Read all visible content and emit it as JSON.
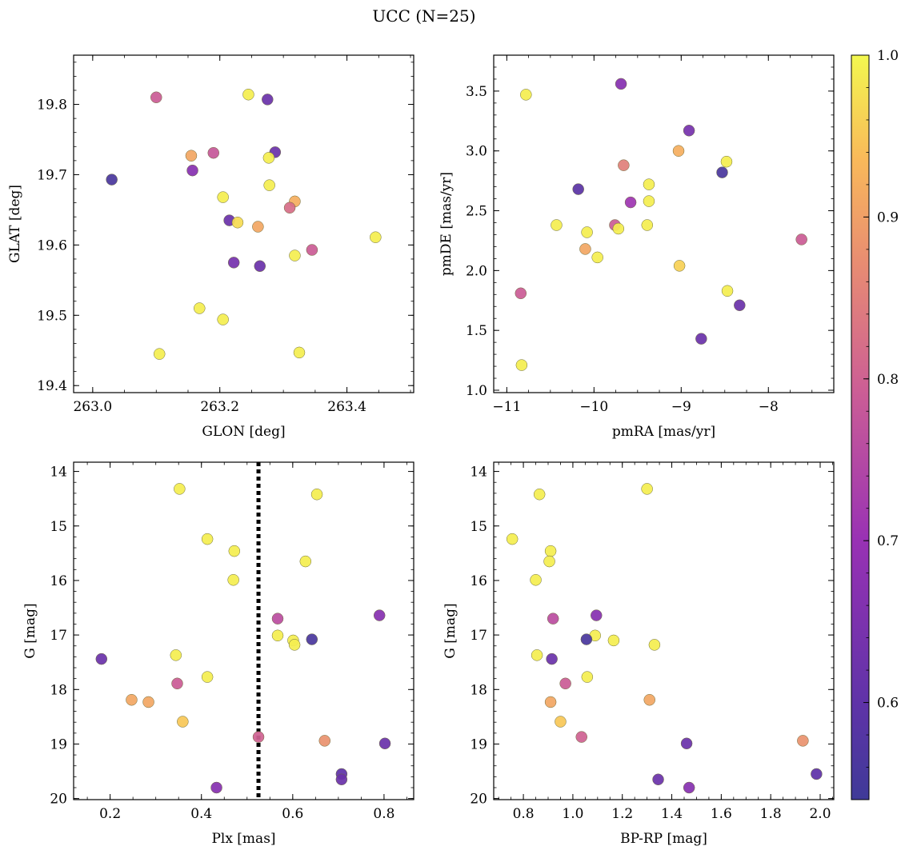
{
  "figure": {
    "title": "UCC (N=25)"
  },
  "colorbar": {
    "colormap": "plasma",
    "vmin": 0.54,
    "vmax": 1.0,
    "ticks": [
      0.6,
      0.7,
      0.8,
      0.9,
      1.0
    ],
    "tick_labels": [
      "0.6",
      "0.7",
      "0.8",
      "0.9",
      "1.0"
    ]
  },
  "chart_data": [
    {
      "type": "scatter",
      "title": "",
      "xlabel": "GLON [deg]",
      "ylabel": "GLAT [deg]",
      "xlim": [
        262.97,
        263.505
      ],
      "ylim": [
        19.39,
        19.87
      ],
      "xticks": [
        263.0,
        263.2,
        263.4
      ],
      "xtick_labels": [
        "263.0",
        "263.2",
        "263.4"
      ],
      "yticks": [
        19.4,
        19.5,
        19.6,
        19.7,
        19.8
      ],
      "ytick_labels": [
        "19.4",
        "19.5",
        "19.6",
        "19.7",
        "19.8"
      ],
      "points": [
        {
          "x": 263.1,
          "y": 19.81,
          "c": 0.79
        },
        {
          "x": 263.245,
          "y": 19.814,
          "c": 0.99
        },
        {
          "x": 263.275,
          "y": 19.807,
          "c": 0.62
        },
        {
          "x": 263.03,
          "y": 19.693,
          "c": 0.56
        },
        {
          "x": 263.155,
          "y": 19.727,
          "c": 0.91
        },
        {
          "x": 263.19,
          "y": 19.731,
          "c": 0.78
        },
        {
          "x": 263.157,
          "y": 19.706,
          "c": 0.67
        },
        {
          "x": 263.287,
          "y": 19.732,
          "c": 0.62
        },
        {
          "x": 263.277,
          "y": 19.724,
          "c": 0.99
        },
        {
          "x": 263.278,
          "y": 19.685,
          "c": 0.99
        },
        {
          "x": 263.205,
          "y": 19.668,
          "c": 0.99
        },
        {
          "x": 263.318,
          "y": 19.662,
          "c": 0.92
        },
        {
          "x": 263.31,
          "y": 19.653,
          "c": 0.82
        },
        {
          "x": 263.215,
          "y": 19.635,
          "c": 0.62
        },
        {
          "x": 263.228,
          "y": 19.632,
          "c": 0.97
        },
        {
          "x": 263.26,
          "y": 19.626,
          "c": 0.91
        },
        {
          "x": 263.445,
          "y": 19.611,
          "c": 0.99
        },
        {
          "x": 263.345,
          "y": 19.593,
          "c": 0.79
        },
        {
          "x": 263.318,
          "y": 19.585,
          "c": 0.99
        },
        {
          "x": 263.222,
          "y": 19.575,
          "c": 0.64
        },
        {
          "x": 263.263,
          "y": 19.57,
          "c": 0.62
        },
        {
          "x": 263.168,
          "y": 19.51,
          "c": 0.99
        },
        {
          "x": 263.205,
          "y": 19.494,
          "c": 0.99
        },
        {
          "x": 263.105,
          "y": 19.445,
          "c": 0.99
        },
        {
          "x": 263.325,
          "y": 19.447,
          "c": 0.99
        }
      ]
    },
    {
      "type": "scatter",
      "title": "",
      "xlabel": "pmRA [mas/yr]",
      "ylabel": "pmDE [mas/yr]",
      "xlim": [
        -11.15,
        -7.25
      ],
      "ylim": [
        0.98,
        3.8
      ],
      "xticks": [
        -11,
        -10,
        -9,
        -8
      ],
      "xtick_labels": [
        "−11",
        "−10",
        "−9",
        "−8"
      ],
      "yticks": [
        1.0,
        1.5,
        2.0,
        2.5,
        3.0,
        3.5
      ],
      "ytick_labels": [
        "1.0",
        "1.5",
        "2.0",
        "2.5",
        "3.0",
        "3.5"
      ],
      "points": [
        {
          "x": -10.78,
          "y": 3.47,
          "c": 0.99
        },
        {
          "x": -9.69,
          "y": 3.56,
          "c": 0.67
        },
        {
          "x": -8.91,
          "y": 3.17,
          "c": 0.64
        },
        {
          "x": -9.03,
          "y": 3.0,
          "c": 0.92
        },
        {
          "x": -8.48,
          "y": 2.91,
          "c": 0.99
        },
        {
          "x": -8.53,
          "y": 2.82,
          "c": 0.56
        },
        {
          "x": -9.66,
          "y": 2.88,
          "c": 0.85
        },
        {
          "x": -10.18,
          "y": 2.68,
          "c": 0.59
        },
        {
          "x": -9.37,
          "y": 2.72,
          "c": 0.99
        },
        {
          "x": -9.37,
          "y": 2.58,
          "c": 0.99
        },
        {
          "x": -9.58,
          "y": 2.57,
          "c": 0.71
        },
        {
          "x": -10.43,
          "y": 2.38,
          "c": 0.99
        },
        {
          "x": -9.76,
          "y": 2.38,
          "c": 0.79
        },
        {
          "x": -9.72,
          "y": 2.35,
          "c": 0.99
        },
        {
          "x": -9.39,
          "y": 2.38,
          "c": 0.99
        },
        {
          "x": -10.08,
          "y": 2.32,
          "c": 0.99
        },
        {
          "x": -7.62,
          "y": 2.26,
          "c": 0.79
        },
        {
          "x": -10.1,
          "y": 2.18,
          "c": 0.91
        },
        {
          "x": -9.96,
          "y": 2.11,
          "c": 0.99
        },
        {
          "x": -9.02,
          "y": 2.04,
          "c": 0.96
        },
        {
          "x": -10.84,
          "y": 1.81,
          "c": 0.79
        },
        {
          "x": -8.47,
          "y": 1.83,
          "c": 0.99
        },
        {
          "x": -8.33,
          "y": 1.71,
          "c": 0.62
        },
        {
          "x": -8.77,
          "y": 1.43,
          "c": 0.62
        },
        {
          "x": -10.83,
          "y": 1.21,
          "c": 0.99
        }
      ]
    },
    {
      "type": "scatter",
      "title": "",
      "xlabel": "Plx [mas]",
      "ylabel": "G [mag]",
      "xlim": [
        0.12,
        0.865
      ],
      "ylim": [
        20.02,
        13.83
      ],
      "y_inverted": true,
      "xticks": [
        0.2,
        0.4,
        0.6,
        0.8
      ],
      "xtick_labels": [
        "0.2",
        "0.4",
        "0.6",
        "0.8"
      ],
      "yticks": [
        14,
        15,
        16,
        17,
        18,
        19,
        20
      ],
      "ytick_labels": [
        "14",
        "15",
        "16",
        "17",
        "18",
        "19",
        "20"
      ],
      "vline": {
        "x": 0.525,
        "style": "dotted"
      },
      "points": [
        {
          "x": 0.352,
          "y": 14.32,
          "c": 0.99
        },
        {
          "x": 0.653,
          "y": 14.42,
          "c": 0.99
        },
        {
          "x": 0.413,
          "y": 15.24,
          "c": 0.99
        },
        {
          "x": 0.472,
          "y": 15.46,
          "c": 0.99
        },
        {
          "x": 0.628,
          "y": 15.65,
          "c": 0.99
        },
        {
          "x": 0.47,
          "y": 15.99,
          "c": 0.99
        },
        {
          "x": 0.567,
          "y": 16.7,
          "c": 0.76
        },
        {
          "x": 0.79,
          "y": 16.64,
          "c": 0.67
        },
        {
          "x": 0.567,
          "y": 17.01,
          "c": 0.99
        },
        {
          "x": 0.601,
          "y": 17.1,
          "c": 0.99
        },
        {
          "x": 0.604,
          "y": 17.18,
          "c": 0.99
        },
        {
          "x": 0.642,
          "y": 17.08,
          "c": 0.56
        },
        {
          "x": 0.181,
          "y": 17.44,
          "c": 0.62
        },
        {
          "x": 0.344,
          "y": 17.37,
          "c": 0.99
        },
        {
          "x": 0.413,
          "y": 17.77,
          "c": 0.99
        },
        {
          "x": 0.347,
          "y": 17.89,
          "c": 0.79
        },
        {
          "x": 0.247,
          "y": 18.19,
          "c": 0.91
        },
        {
          "x": 0.284,
          "y": 18.23,
          "c": 0.91
        },
        {
          "x": 0.359,
          "y": 18.59,
          "c": 0.95
        },
        {
          "x": 0.525,
          "y": 18.87,
          "c": 0.8
        },
        {
          "x": 0.67,
          "y": 18.94,
          "c": 0.88
        },
        {
          "x": 0.802,
          "y": 18.99,
          "c": 0.62
        },
        {
          "x": 0.707,
          "y": 19.55,
          "c": 0.6
        },
        {
          "x": 0.707,
          "y": 19.65,
          "c": 0.62
        },
        {
          "x": 0.433,
          "y": 19.8,
          "c": 0.67
        }
      ]
    },
    {
      "type": "scatter",
      "title": "",
      "xlabel": "BP-RP [mag]",
      "ylabel": "G [mag]",
      "xlim": [
        0.68,
        2.055
      ],
      "ylim": [
        20.02,
        13.83
      ],
      "y_inverted": true,
      "xticks": [
        0.8,
        1.0,
        1.2,
        1.4,
        1.6,
        1.8,
        2.0
      ],
      "xtick_labels": [
        "0.8",
        "1.0",
        "1.2",
        "1.4",
        "1.6",
        "1.8",
        "2.0"
      ],
      "yticks": [
        14,
        15,
        16,
        17,
        18,
        19,
        20
      ],
      "ytick_labels": [
        "14",
        "15",
        "16",
        "17",
        "18",
        "19",
        "20"
      ],
      "points": [
        {
          "x": 1.3,
          "y": 14.32,
          "c": 0.99
        },
        {
          "x": 0.865,
          "y": 14.42,
          "c": 0.99
        },
        {
          "x": 0.755,
          "y": 15.24,
          "c": 0.99
        },
        {
          "x": 0.91,
          "y": 15.46,
          "c": 0.99
        },
        {
          "x": 0.905,
          "y": 15.65,
          "c": 0.99
        },
        {
          "x": 0.85,
          "y": 15.99,
          "c": 0.99
        },
        {
          "x": 0.92,
          "y": 16.7,
          "c": 0.76
        },
        {
          "x": 1.095,
          "y": 16.64,
          "c": 0.67
        },
        {
          "x": 1.09,
          "y": 17.01,
          "c": 0.99
        },
        {
          "x": 1.165,
          "y": 17.1,
          "c": 0.99
        },
        {
          "x": 1.33,
          "y": 17.18,
          "c": 0.99
        },
        {
          "x": 1.055,
          "y": 17.08,
          "c": 0.56
        },
        {
          "x": 0.915,
          "y": 17.44,
          "c": 0.62
        },
        {
          "x": 0.855,
          "y": 17.37,
          "c": 0.99
        },
        {
          "x": 1.058,
          "y": 17.77,
          "c": 0.99
        },
        {
          "x": 0.97,
          "y": 17.89,
          "c": 0.79
        },
        {
          "x": 1.31,
          "y": 18.19,
          "c": 0.91
        },
        {
          "x": 0.91,
          "y": 18.23,
          "c": 0.91
        },
        {
          "x": 0.95,
          "y": 18.59,
          "c": 0.95
        },
        {
          "x": 1.035,
          "y": 18.87,
          "c": 0.8
        },
        {
          "x": 1.93,
          "y": 18.94,
          "c": 0.88
        },
        {
          "x": 1.46,
          "y": 18.99,
          "c": 0.62
        },
        {
          "x": 1.985,
          "y": 19.55,
          "c": 0.6
        },
        {
          "x": 1.345,
          "y": 19.65,
          "c": 0.62
        },
        {
          "x": 1.47,
          "y": 19.8,
          "c": 0.67
        }
      ]
    }
  ]
}
